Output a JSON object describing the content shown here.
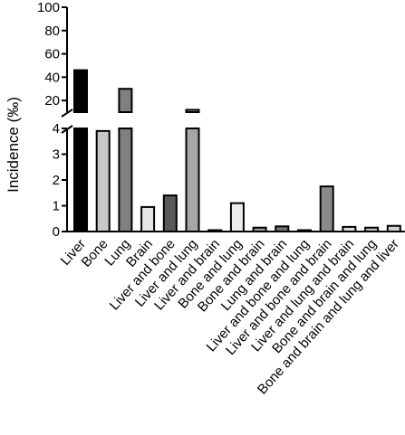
{
  "chart_data": {
    "type": "bar",
    "title": "",
    "xlabel": "",
    "ylabel": "Incidence (‰)",
    "y_axis_break": true,
    "upper_segment": {
      "ylim": [
        10,
        100
      ],
      "ticks": [
        "100",
        "80",
        "60",
        "40",
        "20"
      ],
      "tick_values": [
        100,
        80,
        60,
        40,
        20
      ]
    },
    "lower_segment": {
      "ylim": [
        0,
        4
      ],
      "ticks": [
        "4",
        "3",
        "2",
        "1",
        "0"
      ],
      "tick_values": [
        4,
        3,
        2,
        1,
        0
      ]
    },
    "grid": false,
    "categories": [
      "Liver",
      "Bone",
      "Lung",
      "Brain",
      "Liver and bone",
      "Liver and lung",
      "Liver and brain",
      "Bone and lung",
      "Bone and brain",
      "Lung and brain",
      "Liver and bone and lung",
      "Liver and bone and brain",
      "Liver and lung and brain",
      "Bone and brain and lung",
      "Bone and brain and lung and liver"
    ],
    "values": [
      46,
      3.9,
      30,
      0.95,
      1.4,
      12,
      0.03,
      1.1,
      0.15,
      0.2,
      0.03,
      1.75,
      0.18,
      0.15,
      0.22
    ],
    "bar_colors": [
      "#000000",
      "#c8c8c8",
      "#808080",
      "#e6e6e6",
      "#5a5a5a",
      "#a6a6a6",
      "#ffffff",
      "#ececec",
      "#9a9a9a",
      "#707070",
      "#ffffff",
      "#8a8a8a",
      "#dcdcdc",
      "#bcbcbc",
      "#cfcfcf"
    ]
  }
}
